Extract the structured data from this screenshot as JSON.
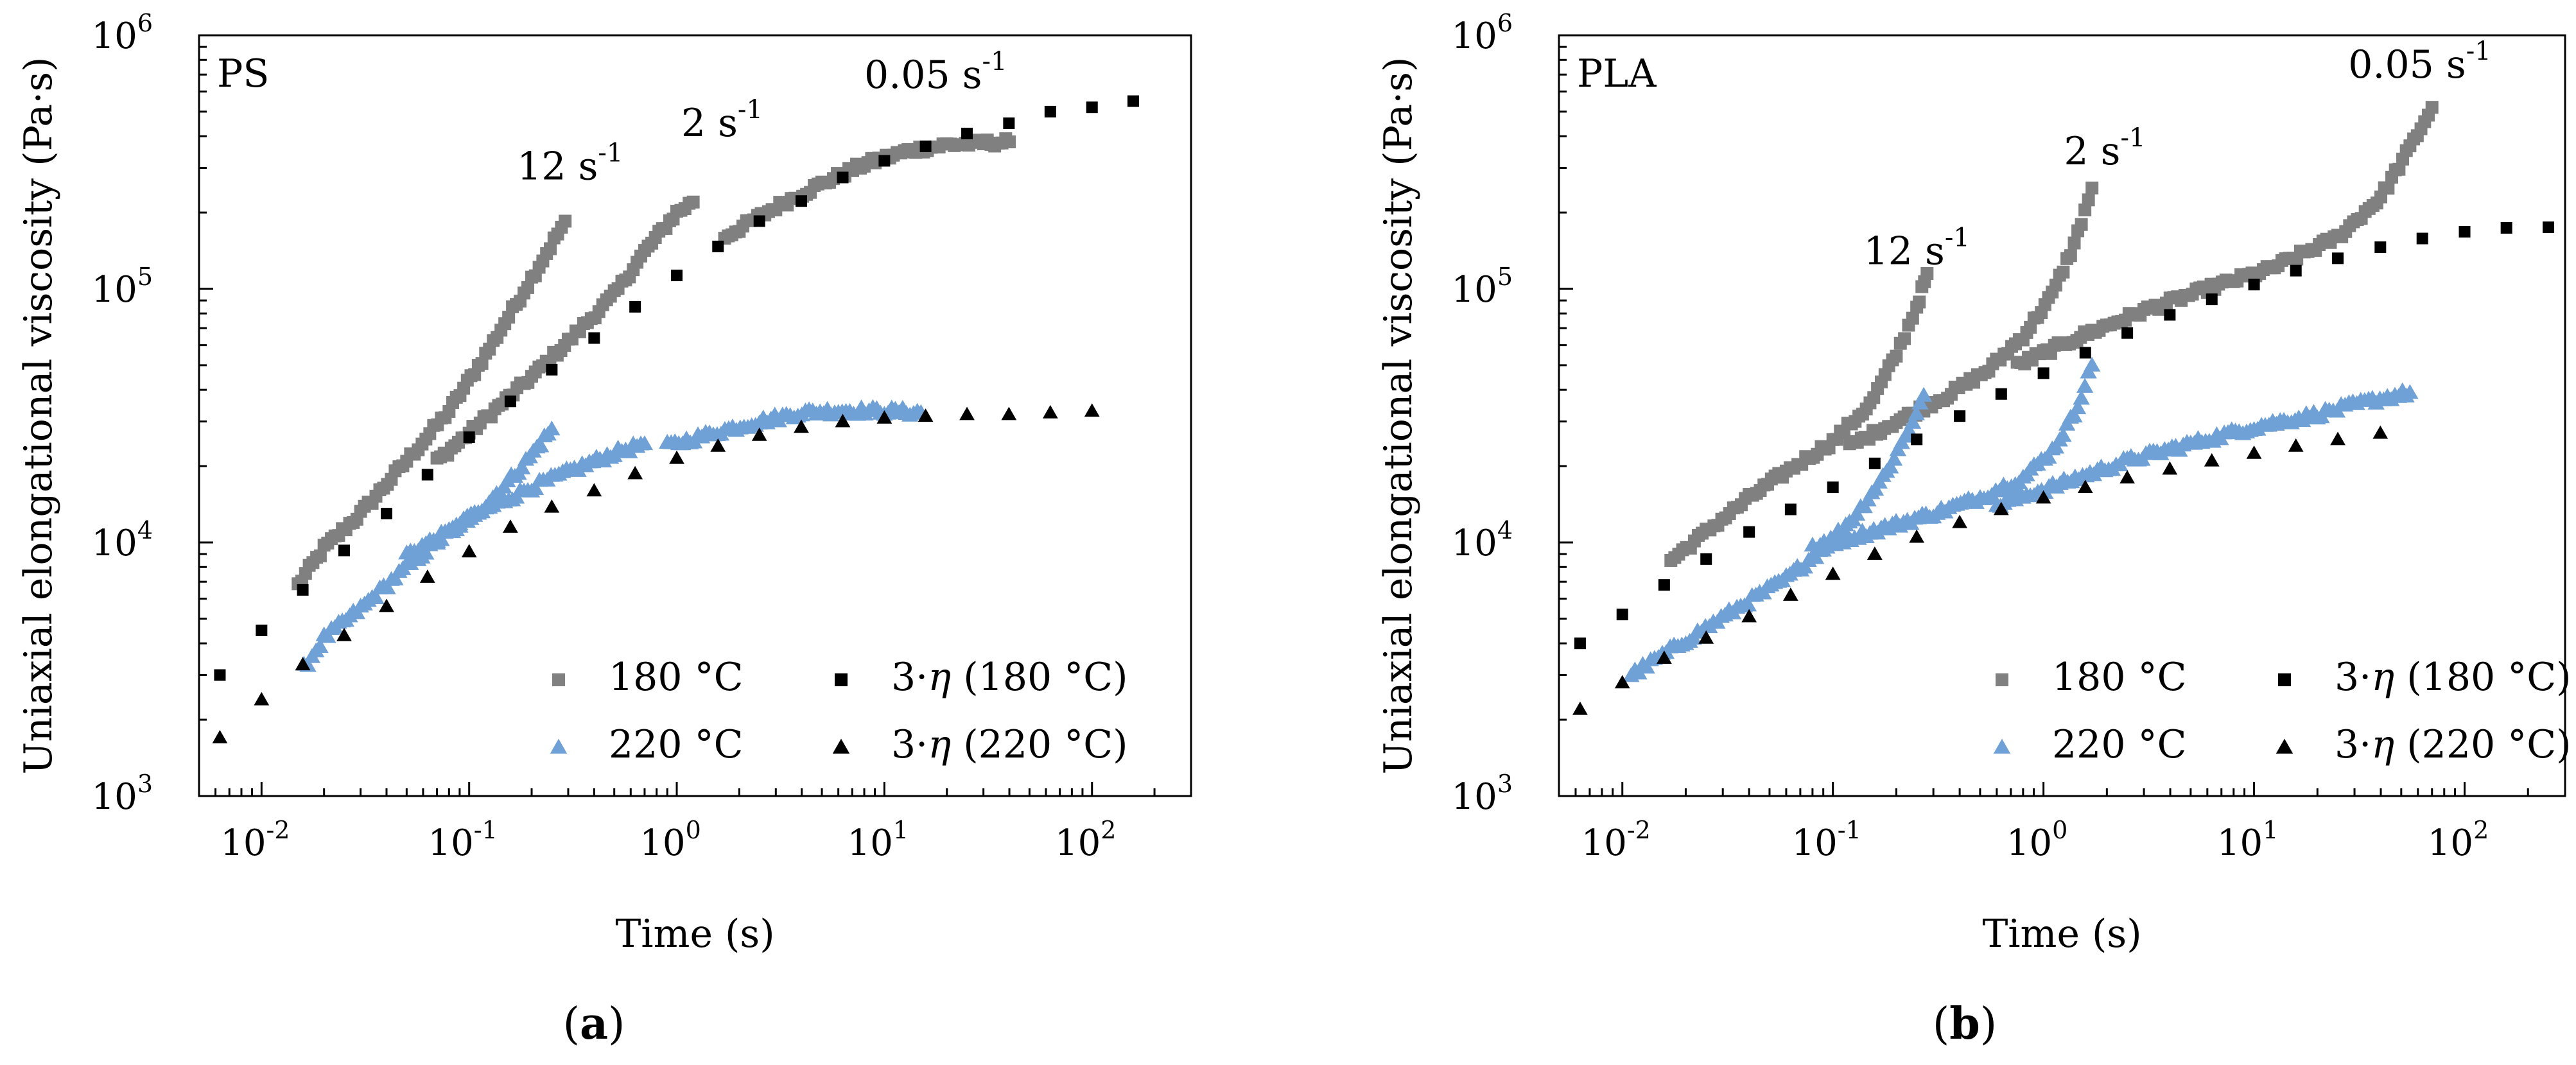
{
  "chart_data": [
    {
      "type": "scatter",
      "panel_label": "a",
      "caption": "(a)",
      "sample": "PS",
      "xlabel": "Time (s)",
      "ylabel": "Uniaxial elongational viscosity (Pa·s)",
      "xscale": "log",
      "yscale": "log",
      "xlim": [
        0.005,
        300
      ],
      "ylim": [
        1000,
        1000000
      ],
      "x_ticks": [
        {
          "base": "10",
          "exp": "-2"
        },
        {
          "base": "10",
          "exp": "-1"
        },
        {
          "base": "10",
          "exp": "0"
        },
        {
          "base": "10",
          "exp": "1"
        },
        {
          "base": "10",
          "exp": "2"
        }
      ],
      "y_ticks": [
        {
          "base": "10",
          "exp": "3"
        },
        {
          "base": "10",
          "exp": "4"
        },
        {
          "base": "10",
          "exp": "5"
        },
        {
          "base": "10",
          "exp": "6"
        }
      ],
      "annotations": [
        {
          "base": "12 s",
          "exp": "-1",
          "x": 0.17,
          "y": 270000
        },
        {
          "base": "2 s",
          "exp": "-1",
          "x": 1.05,
          "y": 400000
        },
        {
          "base": "0.05 s",
          "exp": "-1",
          "x": 8,
          "y": 620000
        }
      ],
      "legend": [
        {
          "label": "180 °C",
          "marker": "square",
          "color": "#808080"
        },
        {
          "label": "220 °C",
          "marker": "triangle",
          "color": "#6fa0d6"
        },
        {
          "label": "3·",
          "italic": "η",
          "suffix": " (180 °C)",
          "marker": "square",
          "color": "#000000"
        },
        {
          "label": "3·",
          "italic": "η",
          "suffix": " (220 °C)",
          "marker": "triangle",
          "color": "#000000"
        }
      ],
      "series": [
        {
          "name": "180 °C, 12 s-1",
          "marker": "square",
          "color": "#808080",
          "dense": true,
          "points": [
            [
              0.015,
              6800
            ],
            [
              0.02,
              9500
            ],
            [
              0.03,
              13000
            ],
            [
              0.05,
              21000
            ],
            [
              0.08,
              33000
            ],
            [
              0.12,
              55000
            ],
            [
              0.2,
              110000
            ],
            [
              0.29,
              185000
            ]
          ]
        },
        {
          "name": "180 °C, 2 s-1",
          "marker": "square",
          "color": "#808080",
          "dense": true,
          "points": [
            [
              0.07,
              21000
            ],
            [
              0.1,
              27000
            ],
            [
              0.2,
              45000
            ],
            [
              0.3,
              62000
            ],
            [
              0.5,
              95000
            ],
            [
              0.7,
              140000
            ],
            [
              1.0,
              200000
            ],
            [
              1.2,
              220000
            ]
          ]
        },
        {
          "name": "180 °C, 0.05 s-1",
          "marker": "square",
          "color": "#808080",
          "dense": true,
          "points": [
            [
              1.7,
              160000
            ],
            [
              3,
              210000
            ],
            [
              5,
              260000
            ],
            [
              8,
              310000
            ],
            [
              13,
              350000
            ],
            [
              20,
              370000
            ],
            [
              40,
              380000
            ]
          ]
        },
        {
          "name": "220 °C, 12 s-1",
          "marker": "triangle",
          "color": "#6fa0d6",
          "dense": true,
          "points": [
            [
              0.016,
              3200
            ],
            [
              0.02,
              4200
            ],
            [
              0.03,
              5500
            ],
            [
              0.05,
              8000
            ],
            [
              0.08,
              11000
            ],
            [
              0.12,
              14000
            ],
            [
              0.18,
              20000
            ],
            [
              0.25,
              28000
            ]
          ]
        },
        {
          "name": "220 °C, 2 s-1",
          "marker": "triangle",
          "color": "#6fa0d6",
          "dense": true,
          "points": [
            [
              0.05,
              9000
            ],
            [
              0.08,
              11000
            ],
            [
              0.12,
              13500
            ],
            [
              0.2,
              16500
            ],
            [
              0.35,
              20000
            ],
            [
              0.5,
              22500
            ],
            [
              0.7,
              24500
            ]
          ]
        },
        {
          "name": "220 °C, 0.05 s-1",
          "marker": "triangle",
          "color": "#6fa0d6",
          "dense": true,
          "points": [
            [
              0.9,
              24000
            ],
            [
              1.5,
              27000
            ],
            [
              2.5,
              30000
            ],
            [
              4,
              32500
            ],
            [
              6,
              33000
            ],
            [
              10,
              33000
            ],
            [
              15,
              32500
            ]
          ]
        },
        {
          "name": "3·η (180 °C)",
          "marker": "square",
          "color": "#000000",
          "dense": false,
          "points": [
            [
              0.0063,
              3000
            ],
            [
              0.01,
              4500
            ],
            [
              0.0158,
              6500
            ],
            [
              0.025,
              9300
            ],
            [
              0.04,
              13000
            ],
            [
              0.063,
              18500
            ],
            [
              0.1,
              26000
            ],
            [
              0.158,
              36000
            ],
            [
              0.25,
              48000
            ],
            [
              0.4,
              64000
            ],
            [
              0.63,
              85000
            ],
            [
              1.0,
              113000
            ],
            [
              1.58,
              147000
            ],
            [
              2.5,
              185000
            ],
            [
              3.98,
              222000
            ],
            [
              6.3,
              275000
            ],
            [
              10,
              320000
            ],
            [
              15.8,
              365000
            ],
            [
              25,
              410000
            ],
            [
              39.8,
              450000
            ],
            [
              63,
              500000
            ],
            [
              100,
              520000
            ],
            [
              158,
              550000
            ]
          ]
        },
        {
          "name": "3·η (220 °C)",
          "marker": "triangle",
          "color": "#000000",
          "dense": false,
          "points": [
            [
              0.0063,
              1700
            ],
            [
              0.01,
              2400
            ],
            [
              0.0158,
              3300
            ],
            [
              0.025,
              4300
            ],
            [
              0.04,
              5600
            ],
            [
              0.063,
              7300
            ],
            [
              0.1,
              9200
            ],
            [
              0.158,
              11500
            ],
            [
              0.25,
              13800
            ],
            [
              0.4,
              16000
            ],
            [
              0.63,
              18700
            ],
            [
              1.0,
              21500
            ],
            [
              1.58,
              24000
            ],
            [
              2.5,
              26500
            ],
            [
              3.98,
              28500
            ],
            [
              6.3,
              30000
            ],
            [
              10,
              31000
            ],
            [
              15.8,
              31500
            ],
            [
              25,
              32000
            ],
            [
              39.8,
              32000
            ],
            [
              63,
              32500
            ],
            [
              100,
              33000
            ]
          ]
        }
      ]
    },
    {
      "type": "scatter",
      "panel_label": "b",
      "caption": "(b)",
      "sample": "PLA",
      "xlabel": "Time (s)",
      "ylabel": "Uniaxial elongational viscosity (Pa·s)",
      "xscale": "log",
      "yscale": "log",
      "xlim": [
        0.005,
        300
      ],
      "ylim": [
        1000,
        1000000
      ],
      "x_ticks": [
        {
          "base": "10",
          "exp": "-2"
        },
        {
          "base": "10",
          "exp": "-1"
        },
        {
          "base": "10",
          "exp": "0"
        },
        {
          "base": "10",
          "exp": "1"
        },
        {
          "base": "10",
          "exp": "2"
        }
      ],
      "y_ticks": [
        {
          "base": "10",
          "exp": "3"
        },
        {
          "base": "10",
          "exp": "4"
        },
        {
          "base": "10",
          "exp": "5"
        },
        {
          "base": "10",
          "exp": "6"
        }
      ],
      "annotations": [
        {
          "base": "12 s",
          "exp": "-1",
          "x": 0.14,
          "y": 125000
        },
        {
          "base": "2 s",
          "exp": "-1",
          "x": 1.25,
          "y": 310000
        },
        {
          "base": "0.05 s",
          "exp": "-1",
          "x": 28,
          "y": 680000
        }
      ],
      "legend": [
        {
          "label": "180 °C",
          "marker": "square",
          "color": "#808080"
        },
        {
          "label": "220 °C",
          "marker": "triangle",
          "color": "#6fa0d6"
        },
        {
          "label": "3·",
          "italic": "η",
          "suffix": " (180 °C)",
          "marker": "square",
          "color": "#000000"
        },
        {
          "label": "3·",
          "italic": "η",
          "suffix": " (220 °C)",
          "marker": "triangle",
          "color": "#000000"
        }
      ],
      "series": [
        {
          "name": "180 °C, 12 s-1",
          "marker": "square",
          "color": "#808080",
          "dense": true,
          "points": [
            [
              0.017,
              8500
            ],
            [
              0.025,
              11000
            ],
            [
              0.04,
              15000
            ],
            [
              0.06,
              19000
            ],
            [
              0.1,
              25000
            ],
            [
              0.15,
              35000
            ],
            [
              0.2,
              55000
            ],
            [
              0.25,
              85000
            ],
            [
              0.28,
              115000
            ]
          ]
        },
        {
          "name": "180 °C, 2 s-1",
          "marker": "square",
          "color": "#808080",
          "dense": true,
          "points": [
            [
              0.12,
              24000
            ],
            [
              0.2,
              30000
            ],
            [
              0.35,
              38000
            ],
            [
              0.55,
              48000
            ],
            [
              0.8,
              65000
            ],
            [
              1.1,
              95000
            ],
            [
              1.4,
              150000
            ],
            [
              1.7,
              250000
            ]
          ]
        },
        {
          "name": "180 °C, 0.05 s-1",
          "marker": "square",
          "color": "#808080",
          "dense": true,
          "points": [
            [
              0.75,
              50000
            ],
            [
              1.5,
              65000
            ],
            [
              3,
              82000
            ],
            [
              6,
              100000
            ],
            [
              12,
              120000
            ],
            [
              25,
              160000
            ],
            [
              40,
              230000
            ],
            [
              55,
              360000
            ],
            [
              70,
              520000
            ]
          ]
        },
        {
          "name": "220 °C, 12 s-1",
          "marker": "triangle",
          "color": "#6fa0d6",
          "dense": true,
          "points": [
            [
              0.011,
              3000
            ],
            [
              0.02,
              4100
            ],
            [
              0.035,
              5500
            ],
            [
              0.06,
              7200
            ],
            [
              0.09,
              9500
            ],
            [
              0.13,
              13000
            ],
            [
              0.18,
              19000
            ],
            [
              0.23,
              28000
            ],
            [
              0.27,
              38000
            ]
          ]
        },
        {
          "name": "220 °C, 2 s-1",
          "marker": "triangle",
          "color": "#6fa0d6",
          "dense": true,
          "points": [
            [
              0.08,
              9500
            ],
            [
              0.15,
              11000
            ],
            [
              0.3,
              13000
            ],
            [
              0.5,
              15000
            ],
            [
              0.8,
              18000
            ],
            [
              1.1,
              23000
            ],
            [
              1.4,
              32000
            ],
            [
              1.7,
              50000
            ]
          ]
        },
        {
          "name": "220 °C, 0.05 s-1",
          "marker": "triangle",
          "color": "#6fa0d6",
          "dense": true,
          "points": [
            [
              0.6,
              14000
            ],
            [
              1.2,
              17000
            ],
            [
              2.5,
              21000
            ],
            [
              5,
              24500
            ],
            [
              10,
              28500
            ],
            [
              20,
              32000
            ],
            [
              35,
              36000
            ],
            [
              55,
              39000
            ]
          ]
        },
        {
          "name": "3·η (180 °C)",
          "marker": "square",
          "color": "#000000",
          "dense": false,
          "points": [
            [
              0.0063,
              4000
            ],
            [
              0.01,
              5200
            ],
            [
              0.0158,
              6800
            ],
            [
              0.025,
              8600
            ],
            [
              0.04,
              11000
            ],
            [
              0.063,
              13500
            ],
            [
              0.1,
              16500
            ],
            [
              0.158,
              20500
            ],
            [
              0.25,
              25500
            ],
            [
              0.4,
              31500
            ],
            [
              0.63,
              38500
            ],
            [
              1.0,
              46500
            ],
            [
              1.58,
              56000
            ],
            [
              2.5,
              67000
            ],
            [
              3.98,
              79000
            ],
            [
              6.3,
              91000
            ],
            [
              10,
              104000
            ],
            [
              15.8,
              118000
            ],
            [
              25,
              132000
            ],
            [
              39.8,
              146000
            ],
            [
              63,
              158000
            ],
            [
              100,
              168000
            ],
            [
              158,
              174000
            ],
            [
              250,
              175000
            ]
          ]
        },
        {
          "name": "3·η (220 °C)",
          "marker": "triangle",
          "color": "#000000",
          "dense": false,
          "points": [
            [
              0.0063,
              2200
            ],
            [
              0.01,
              2800
            ],
            [
              0.0158,
              3500
            ],
            [
              0.025,
              4200
            ],
            [
              0.04,
              5100
            ],
            [
              0.063,
              6200
            ],
            [
              0.1,
              7500
            ],
            [
              0.158,
              9000
            ],
            [
              0.25,
              10500
            ],
            [
              0.4,
              12000
            ],
            [
              0.63,
              13500
            ],
            [
              1.0,
              15000
            ],
            [
              1.58,
              16500
            ],
            [
              2.5,
              18000
            ],
            [
              3.98,
              19500
            ],
            [
              6.3,
              21000
            ],
            [
              10,
              22500
            ],
            [
              15.8,
              24000
            ],
            [
              25,
              25500
            ],
            [
              39.8,
              27000
            ]
          ]
        }
      ]
    }
  ]
}
